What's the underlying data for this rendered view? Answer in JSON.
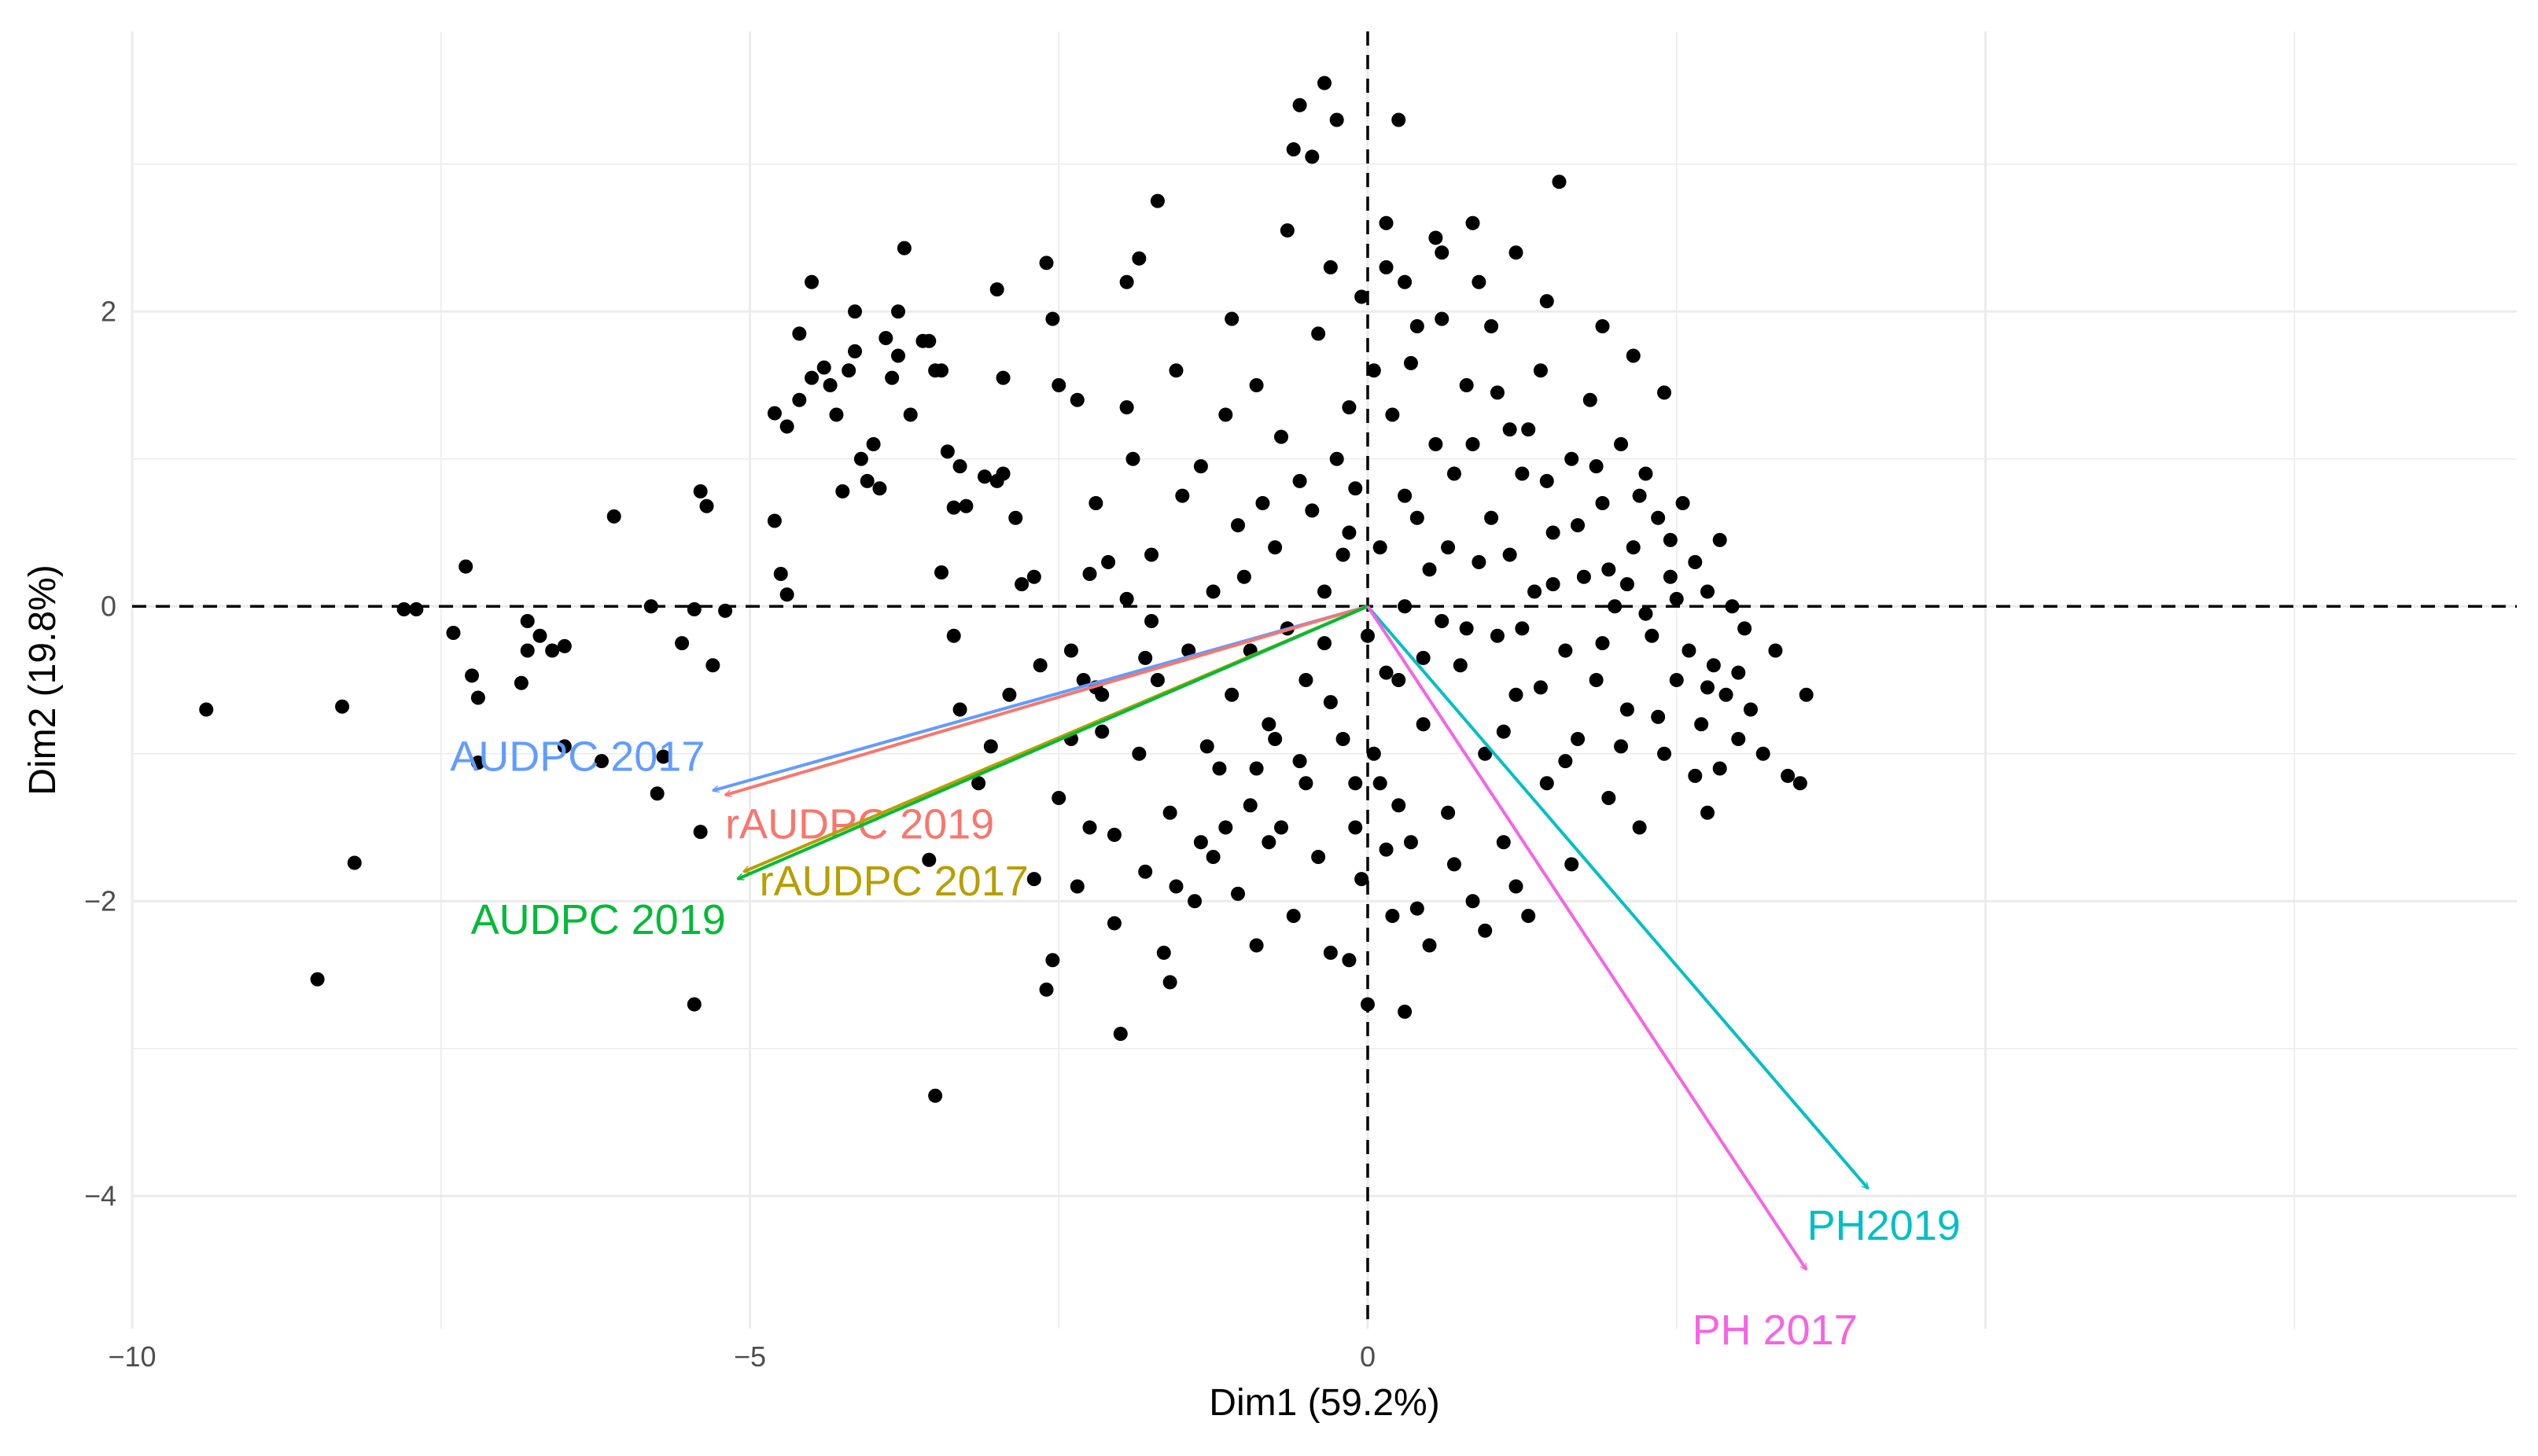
{
  "chart_data": {
    "type": "scatter",
    "title": "",
    "xlabel": "Dim1 (59.2%)",
    "ylabel": "Dim2 (19.8%)",
    "xlim": [
      -10,
      9.3
    ],
    "ylim": [
      -4.9,
      3.9
    ],
    "xticks": [
      -10,
      -5,
      0
    ],
    "xtick_labels": [
      "−10",
      "−5",
      "0"
    ],
    "yticks": [
      -4,
      -2,
      0,
      2
    ],
    "ytick_labels": [
      "−4",
      "−2",
      "0",
      "2"
    ],
    "grid": true,
    "reference_lines": {
      "x": 0,
      "y": 0,
      "style": "dashed"
    },
    "vectors": [
      {
        "name": "AUDPC 2017",
        "x": -5.3,
        "y": -1.25,
        "color": "#619cff"
      },
      {
        "name": "rAUDPC 2019",
        "x": -5.2,
        "y": -1.28,
        "color": "#f8766d"
      },
      {
        "name": "rAUDPC 2017",
        "x": -5.05,
        "y": -1.8,
        "color": "#b79f00"
      },
      {
        "name": "AUDPC 2019",
        "x": -5.1,
        "y": -1.85,
        "color": "#00ba38"
      },
      {
        "name": "PH2019",
        "x": 4.05,
        "y": -3.95,
        "color": "#00bfc4"
      },
      {
        "name": "PH 2017",
        "x": 3.55,
        "y": -4.5,
        "color": "#f564e3"
      }
    ],
    "points": [
      [
        -9.4,
        -0.7
      ],
      [
        -8.3,
        -0.68
      ],
      [
        -8.2,
        -1.74
      ],
      [
        -8.5,
        -2.53
      ],
      [
        -7.8,
        -0.02
      ],
      [
        -7.7,
        -0.02
      ],
      [
        -7.3,
        0.27
      ],
      [
        -7.4,
        -0.18
      ],
      [
        -7.25,
        -0.47
      ],
      [
        -7.2,
        -0.62
      ],
      [
        -7.2,
        -1.06
      ],
      [
        -6.8,
        -0.1
      ],
      [
        -6.8,
        -0.3
      ],
      [
        -6.7,
        -0.2
      ],
      [
        -6.6,
        -0.3
      ],
      [
        -6.85,
        -0.52
      ],
      [
        -6.5,
        -0.27
      ],
      [
        -6.5,
        -0.95
      ],
      [
        -6.2,
        -1.05
      ],
      [
        -6.1,
        0.61
      ],
      [
        -5.8,
        0.0
      ],
      [
        -5.7,
        -1.02
      ],
      [
        -5.55,
        -0.25
      ],
      [
        -5.45,
        -0.02
      ],
      [
        -5.75,
        -1.27
      ],
      [
        -5.4,
        0.78
      ],
      [
        -5.35,
        0.68
      ],
      [
        -5.3,
        -0.4
      ],
      [
        -5.2,
        -0.03
      ],
      [
        -5.4,
        -1.53
      ],
      [
        -5.45,
        -2.7
      ],
      [
        -4.8,
        0.58
      ],
      [
        -4.75,
        0.22
      ],
      [
        -4.7,
        0.08
      ],
      [
        -4.8,
        1.31
      ],
      [
        -4.7,
        1.22
      ],
      [
        -4.6,
        1.85
      ],
      [
        -4.5,
        1.55
      ],
      [
        -4.6,
        1.4
      ],
      [
        -4.4,
        1.62
      ],
      [
        -4.35,
        1.5
      ],
      [
        -4.3,
        1.3
      ],
      [
        -4.2,
        1.6
      ],
      [
        -4.15,
        1.73
      ],
      [
        -4.1,
        1.0
      ],
      [
        -4.05,
        0.85
      ],
      [
        -4.5,
        2.2
      ],
      [
        -4.15,
        2.0
      ],
      [
        -4.25,
        0.78
      ],
      [
        -4.0,
        1.1
      ],
      [
        -3.95,
        0.8
      ],
      [
        -3.85,
        1.55
      ],
      [
        -3.8,
        1.7
      ],
      [
        -3.7,
        1.3
      ],
      [
        -3.9,
        1.82
      ],
      [
        -3.8,
        2.0
      ],
      [
        -3.75,
        2.43
      ],
      [
        -3.6,
        1.8
      ],
      [
        -3.5,
        1.6
      ],
      [
        -3.55,
        1.8
      ],
      [
        -3.45,
        1.6
      ],
      [
        -3.4,
        1.05
      ],
      [
        -3.3,
        0.95
      ],
      [
        -3.35,
        0.67
      ],
      [
        -3.25,
        0.68
      ],
      [
        -3.1,
        0.88
      ],
      [
        -3.0,
        0.85
      ],
      [
        -3.45,
        0.23
      ],
      [
        -3.35,
        -0.2
      ],
      [
        -3.3,
        -0.7
      ],
      [
        -3.55,
        -1.72
      ],
      [
        -3.5,
        -3.32
      ],
      [
        -3.15,
        -1.2
      ],
      [
        -3.05,
        -0.95
      ],
      [
        -3.0,
        2.15
      ],
      [
        -2.95,
        0.9
      ],
      [
        -2.95,
        1.55
      ],
      [
        -2.85,
        0.6
      ],
      [
        -2.8,
        0.15
      ],
      [
        -2.7,
        0.2
      ],
      [
        -2.6,
        2.33
      ],
      [
        -2.55,
        1.95
      ],
      [
        -2.5,
        1.5
      ],
      [
        -2.4,
        -0.3
      ],
      [
        -2.3,
        -0.5
      ],
      [
        -2.2,
        -0.55
      ],
      [
        -2.65,
        -0.4
      ],
      [
        -2.6,
        -2.6
      ],
      [
        -2.5,
        -1.3
      ],
      [
        -2.4,
        -0.9
      ],
      [
        -2.35,
        1.4
      ],
      [
        -2.25,
        0.22
      ],
      [
        -2.25,
        -1.5
      ],
      [
        -2.2,
        0.7
      ],
      [
        -2.1,
        0.3
      ],
      [
        -2.15,
        -0.6
      ],
      [
        -2.05,
        -1.55
      ],
      [
        -2.0,
        -2.9
      ],
      [
        -1.95,
        2.2
      ],
      [
        -1.95,
        1.35
      ],
      [
        -1.9,
        1.0
      ],
      [
        -1.85,
        2.36
      ],
      [
        -1.8,
        -1.8
      ],
      [
        -1.8,
        -0.35
      ],
      [
        -1.75,
        -0.1
      ],
      [
        -1.7,
        2.75
      ],
      [
        -1.7,
        -0.5
      ],
      [
        -1.6,
        -1.4
      ],
      [
        -1.6,
        -2.55
      ],
      [
        -1.55,
        -1.9
      ],
      [
        -1.5,
        0.75
      ],
      [
        -1.4,
        -2.0
      ],
      [
        -1.35,
        -1.6
      ],
      [
        -1.3,
        -0.95
      ],
      [
        -1.25,
        0.1
      ],
      [
        -1.2,
        -1.1
      ],
      [
        -1.15,
        -1.5
      ],
      [
        -1.1,
        -0.6
      ],
      [
        -1.05,
        -1.95
      ],
      [
        -1.0,
        0.2
      ],
      [
        -0.95,
        -0.3
      ],
      [
        -0.9,
        -1.1
      ],
      [
        -0.9,
        -2.3
      ],
      [
        -0.85,
        0.7
      ],
      [
        -0.8,
        -1.6
      ],
      [
        -0.8,
        -0.8
      ],
      [
        -0.75,
        0.4
      ],
      [
        -0.7,
        -1.5
      ],
      [
        -0.65,
        2.55
      ],
      [
        -0.6,
        -2.1
      ],
      [
        -0.55,
        0.85
      ],
      [
        -0.5,
        -0.5
      ],
      [
        -0.5,
        -1.2
      ],
      [
        -0.45,
        3.05
      ],
      [
        -0.4,
        1.85
      ],
      [
        -0.4,
        -1.7
      ],
      [
        -0.35,
        0.1
      ],
      [
        -0.3,
        2.3
      ],
      [
        -0.3,
        -2.35
      ],
      [
        -0.25,
        1.0
      ],
      [
        -0.2,
        -0.9
      ],
      [
        -0.15,
        -2.4
      ],
      [
        -0.15,
        0.5
      ],
      [
        -0.1,
        -1.5
      ],
      [
        -0.1,
        0.8
      ],
      [
        -0.05,
        2.1
      ],
      [
        0.0,
        -0.2
      ],
      [
        0.0,
        -2.7
      ],
      [
        0.05,
        1.6
      ],
      [
        0.1,
        -1.2
      ],
      [
        0.1,
        0.4
      ],
      [
        0.15,
        2.6
      ],
      [
        0.2,
        -2.1
      ],
      [
        0.2,
        1.3
      ],
      [
        0.25,
        -0.5
      ],
      [
        0.3,
        2.2
      ],
      [
        0.3,
        -2.75
      ],
      [
        -0.35,
        3.55
      ],
      [
        -0.55,
        3.4
      ],
      [
        -0.6,
        3.1
      ],
      [
        -0.25,
        3.3
      ],
      [
        0.25,
        3.3
      ],
      [
        0.15,
        2.3
      ],
      [
        0.3,
        0.0
      ],
      [
        0.35,
        -1.6
      ],
      [
        0.4,
        0.6
      ],
      [
        0.4,
        1.9
      ],
      [
        0.45,
        -0.8
      ],
      [
        0.5,
        -2.3
      ],
      [
        0.55,
        1.1
      ],
      [
        0.6,
        -0.1
      ],
      [
        0.6,
        2.4
      ],
      [
        0.65,
        -1.4
      ],
      [
        0.7,
        0.9
      ],
      [
        0.75,
        -0.4
      ],
      [
        0.8,
        1.5
      ],
      [
        0.85,
        -2.0
      ],
      [
        0.9,
        0.3
      ],
      [
        0.95,
        -1.0
      ],
      [
        1.0,
        1.9
      ],
      [
        1.0,
        0.6
      ],
      [
        1.05,
        -0.2
      ],
      [
        1.1,
        -1.6
      ],
      [
        1.15,
        1.2
      ],
      [
        1.2,
        -0.6
      ],
      [
        1.25,
        0.9
      ],
      [
        1.3,
        -2.1
      ],
      [
        1.35,
        0.1
      ],
      [
        1.4,
        1.6
      ],
      [
        1.45,
        -1.2
      ],
      [
        1.5,
        0.5
      ],
      [
        1.55,
        2.88
      ],
      [
        1.6,
        -0.3
      ],
      [
        1.65,
        1.0
      ],
      [
        1.7,
        -0.9
      ],
      [
        1.75,
        0.2
      ],
      [
        1.8,
        1.4
      ],
      [
        1.85,
        -0.5
      ],
      [
        1.9,
        0.7
      ],
      [
        1.95,
        -1.3
      ],
      [
        2.0,
        0.0
      ],
      [
        2.05,
        1.1
      ],
      [
        2.1,
        -0.7
      ],
      [
        2.15,
        0.4
      ],
      [
        2.2,
        -1.5
      ],
      [
        2.25,
        0.9
      ],
      [
        2.3,
        -0.2
      ],
      [
        2.35,
        0.6
      ],
      [
        2.4,
        -1.0
      ],
      [
        2.45,
        0.2
      ],
      [
        2.5,
        -0.5
      ],
      [
        2.55,
        0.7
      ],
      [
        2.6,
        -0.3
      ],
      [
        2.65,
        0.3
      ],
      [
        2.7,
        -0.8
      ],
      [
        2.75,
        0.1
      ],
      [
        2.8,
        -0.4
      ],
      [
        2.85,
        -1.1
      ],
      [
        2.9,
        -0.6
      ],
      [
        2.95,
        0.0
      ],
      [
        3.0,
        -0.9
      ],
      [
        3.1,
        -0.7
      ],
      [
        3.2,
        -1.0
      ],
      [
        3.3,
        -0.3
      ],
      [
        3.4,
        -1.15
      ],
      [
        3.5,
        -1.2
      ],
      [
        3.55,
        -0.6
      ],
      [
        2.75,
        -1.4
      ],
      [
        2.4,
        1.45
      ],
      [
        2.15,
        1.7
      ],
      [
        1.9,
        1.9
      ],
      [
        1.45,
        2.07
      ],
      [
        0.55,
        2.5
      ],
      [
        0.85,
        2.6
      ],
      [
        1.3,
        1.2
      ],
      [
        1.15,
        0.35
      ],
      [
        0.8,
        -0.15
      ],
      [
        0.5,
        0.25
      ],
      [
        0.3,
        0.75
      ],
      [
        0.15,
        -0.45
      ],
      [
        -0.2,
        0.35
      ],
      [
        -0.35,
        -0.25
      ],
      [
        -0.55,
        -1.05
      ],
      [
        -0.65,
        -0.15
      ],
      [
        -0.75,
        -0.9
      ],
      [
        -0.95,
        -1.35
      ],
      [
        -1.05,
        0.55
      ],
      [
        -1.15,
        1.3
      ],
      [
        -1.25,
        -1.7
      ],
      [
        -1.35,
        0.95
      ],
      [
        -1.45,
        -0.3
      ],
      [
        -1.55,
        1.6
      ],
      [
        -1.65,
        -2.35
      ],
      [
        -1.75,
        0.35
      ],
      [
        -1.85,
        -1.0
      ],
      [
        -1.95,
        0.05
      ],
      [
        -2.05,
        -2.15
      ],
      [
        -2.15,
        -0.85
      ],
      [
        -2.35,
        -1.9
      ],
      [
        -2.55,
        -2.4
      ],
      [
        -2.7,
        -1.85
      ],
      [
        -2.9,
        -0.6
      ],
      [
        -0.05,
        -1.85
      ],
      [
        0.05,
        -1.0
      ],
      [
        0.25,
        -1.35
      ],
      [
        0.45,
        -0.35
      ],
      [
        0.65,
        0.4
      ],
      [
        0.85,
        1.1
      ],
      [
        1.05,
        1.45
      ],
      [
        1.25,
        -0.15
      ],
      [
        1.45,
        0.85
      ],
      [
        1.65,
        -1.75
      ],
      [
        1.85,
        0.95
      ],
      [
        2.05,
        -0.95
      ],
      [
        2.25,
        -0.05
      ],
      [
        2.45,
        0.45
      ],
      [
        2.65,
        -1.15
      ],
      [
        2.85,
        0.45
      ],
      [
        3.05,
        -0.15
      ],
      [
        0.7,
        -1.75
      ],
      [
        0.95,
        -2.2
      ],
      [
        1.2,
        -1.9
      ],
      [
        0.4,
        -2.05
      ],
      [
        0.15,
        -1.65
      ],
      [
        -0.1,
        -1.2
      ],
      [
        -0.3,
        -0.65
      ],
      [
        -0.45,
        0.65
      ],
      [
        -0.7,
        1.15
      ],
      [
        -0.9,
        1.5
      ],
      [
        -1.1,
        1.95
      ],
      [
        -0.15,
        1.35
      ],
      [
        0.35,
        1.65
      ],
      [
        0.6,
        1.95
      ],
      [
        0.9,
        2.2
      ],
      [
        1.2,
        2.4
      ],
      [
        1.5,
        0.15
      ],
      [
        1.7,
        0.55
      ],
      [
        1.95,
        0.25
      ],
      [
        2.2,
        0.75
      ],
      [
        2.5,
        0.05
      ],
      [
        2.75,
        -0.55
      ],
      [
        3.0,
        -0.45
      ],
      [
        1.1,
        -0.85
      ],
      [
        1.4,
        -0.55
      ],
      [
        1.6,
        -1.05
      ],
      [
        1.9,
        -0.25
      ],
      [
        2.1,
        0.15
      ],
      [
        2.35,
        -0.75
      ]
    ]
  }
}
